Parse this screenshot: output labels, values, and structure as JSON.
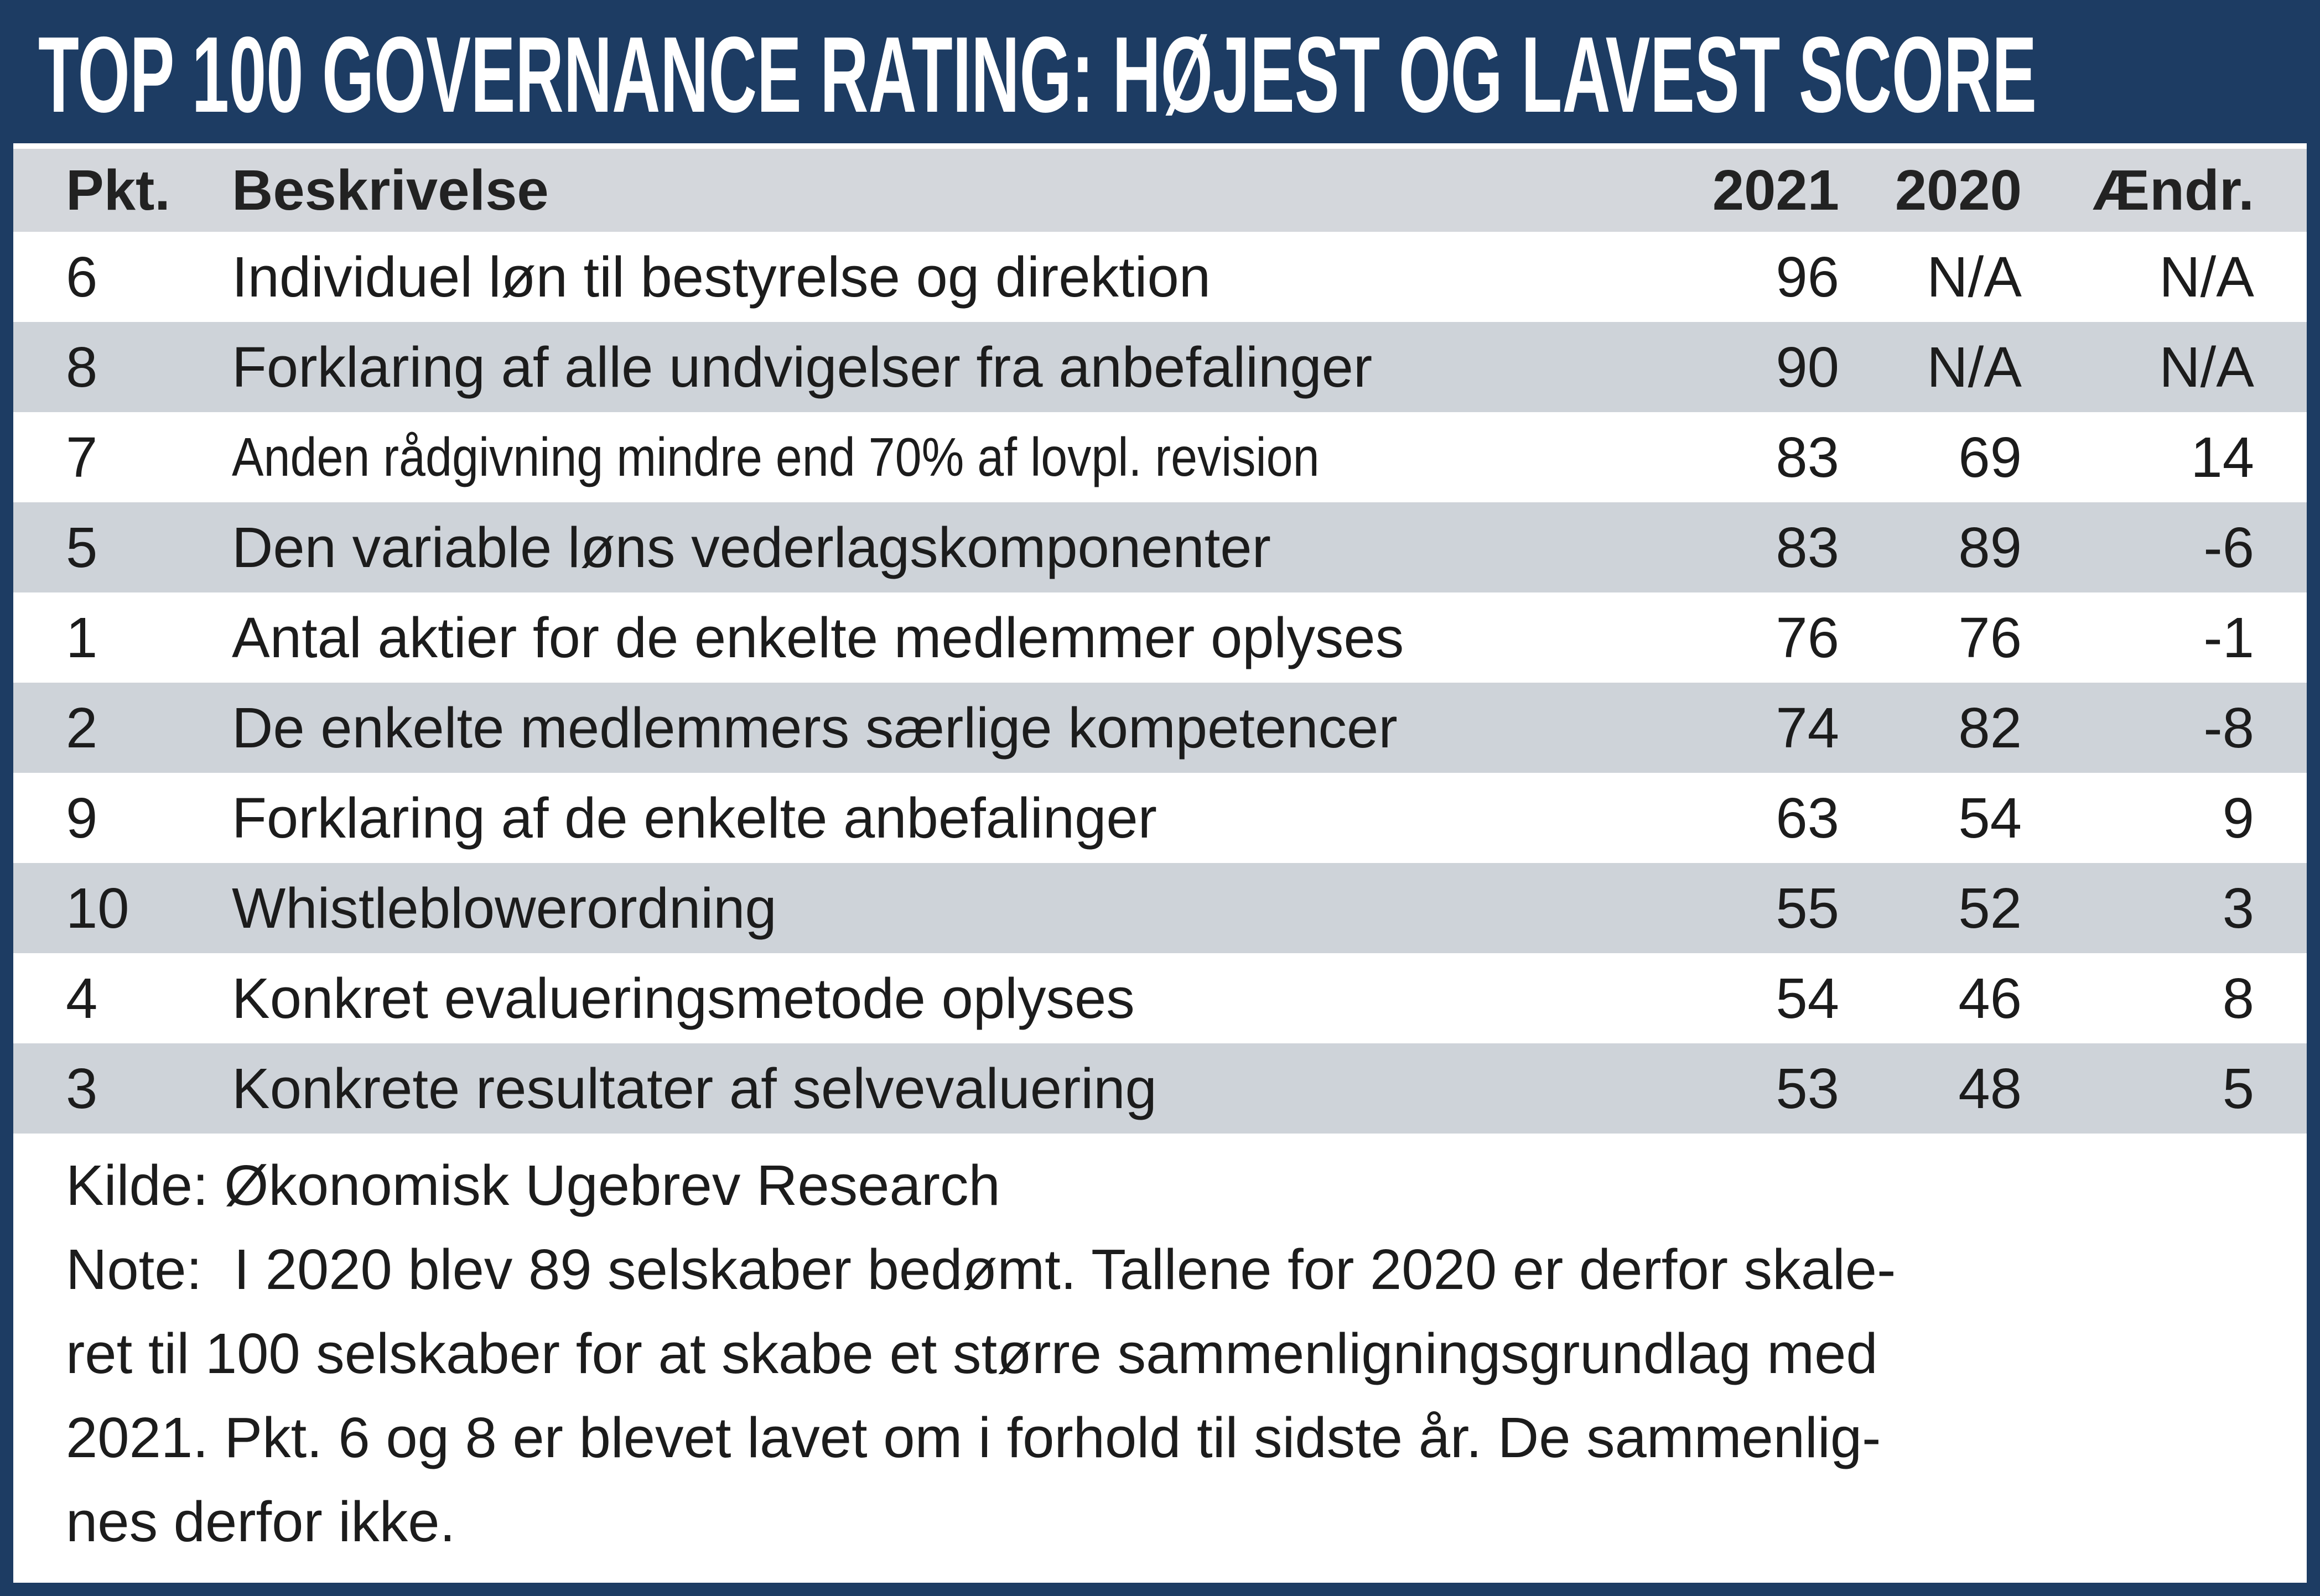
{
  "chart_data": {
    "type": "table",
    "title": "TOP 100 GOVERNANCE RATING: HØJEST OG LAVEST SCORE",
    "columns": [
      "Pkt.",
      "Beskrivelse",
      "2021",
      "2020",
      "Ændr."
    ],
    "rows": [
      [
        6,
        "Individuel løn til bestyrelse og direktion",
        96,
        "N/A",
        "N/A"
      ],
      [
        8,
        "Forklaring af alle undvigelser fra anbefalinger",
        90,
        "N/A",
        "N/A"
      ],
      [
        7,
        "Anden rådgivning mindre end 70% af lovpl. revision",
        83,
        69,
        14
      ],
      [
        5,
        "Den variable løns vederlagskomponenter",
        83,
        89,
        -6
      ],
      [
        1,
        "Antal aktier for de enkelte medlemmer oplyses",
        76,
        76,
        -1
      ],
      [
        2,
        "De enkelte medlemmers særlige kompetencer",
        74,
        82,
        -8
      ],
      [
        9,
        "Forklaring af de enkelte anbefalinger",
        63,
        54,
        9
      ],
      [
        10,
        "Whistleblowerordning",
        55,
        52,
        3
      ],
      [
        4,
        "Konkret evalueringsmetode oplyses",
        54,
        46,
        8
      ],
      [
        3,
        "Konkrete resultater af selvevaluering",
        53,
        48,
        5
      ]
    ],
    "source": "Kilde: Økonomisk Ugebrev Research",
    "note": "Note:  I 2020 blev 89 selskaber bedømt. Tallene for 2020 er derfor skaleret til 100 selskaber for at skabe et større sammenligningsgrundlag med 2021. Pkt. 6 og 8 er blevet lavet om i forhold til sidste år. De sammenlignes derfor ikke."
  },
  "footer": {
    "kilde": "Kilde: Økonomisk Ugebrev Research",
    "note_lines": [
      "Note:  I 2020 blev 89 selskaber bedømt. Tallene for 2020 er derfor skale-",
      "ret til 100 selskaber for at skabe et større sammenligningsgrundlag med",
      "2021. Pkt. 6 og 8 er blevet lavet om i forhold til sidste år. De sammenlig-",
      "nes derfor ikke."
    ]
  },
  "colors": {
    "navy": "#1d3c63",
    "row_alt_gray": "#ced3d9",
    "header_gray": "#d4d7dc",
    "text": "#1c1c1c",
    "title_text": "#ffffff"
  }
}
